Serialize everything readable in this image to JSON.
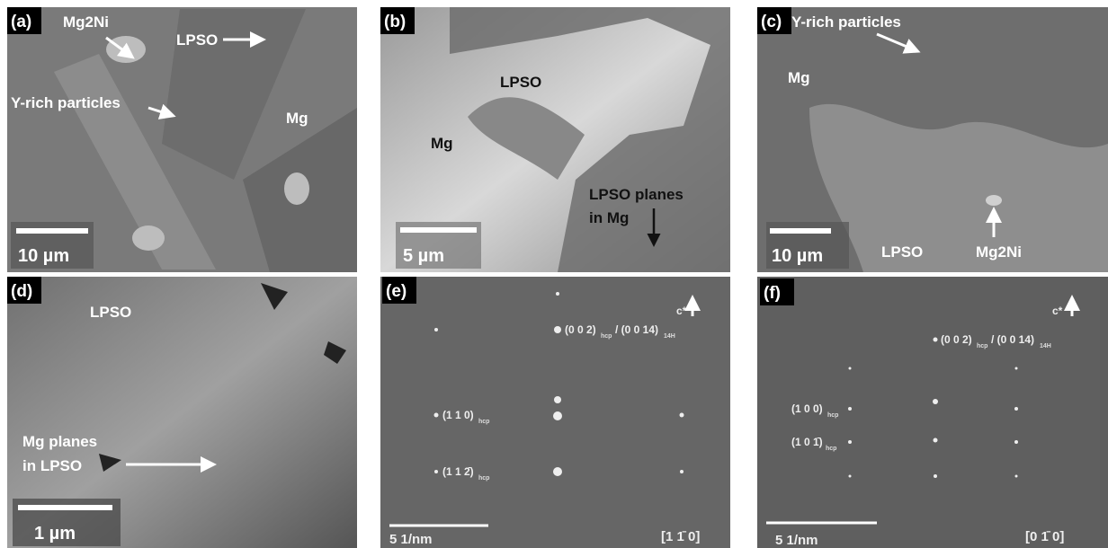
{
  "panels": [
    {
      "label": "(a)",
      "texts": [
        "Mg2Ni",
        "LPSO",
        "Y-rich particles",
        "Mg"
      ],
      "scale_bar": "10 µm"
    },
    {
      "label": "(b)",
      "texts": [
        "LPSO",
        "Mg",
        "LPSO planes",
        "in Mg"
      ],
      "scale_bar": "5 µm"
    },
    {
      "label": "(c)",
      "texts": [
        "Y-rich particles",
        "Mg",
        "LPSO",
        "Mg2Ni"
      ],
      "scale_bar": "10 µm"
    },
    {
      "label": "(d)",
      "texts": [
        "LPSO",
        "Mg planes",
        "in LPSO"
      ],
      "scale_bar": "1 µm"
    },
    {
      "label": "(e)",
      "texts": [
        "c*",
        "(0 0 2)",
        "hcp",
        "/ (0 0 14)",
        "14H",
        "(1 1 0)",
        "hcp",
        "(1 1 2̄)",
        "hcp",
        "[1 1̄ 0]"
      ],
      "scale_bar": "5 1/nm"
    },
    {
      "label": "(f)",
      "texts": [
        "c*",
        "(0 0 2)",
        "hcp",
        "/ (0 0 14)",
        "14H",
        "(1 0 0)",
        "hcp",
        "(1 0 1̄)",
        "hcp",
        "[0 1̄ 0]"
      ],
      "scale_bar": "5 1/nm"
    }
  ]
}
